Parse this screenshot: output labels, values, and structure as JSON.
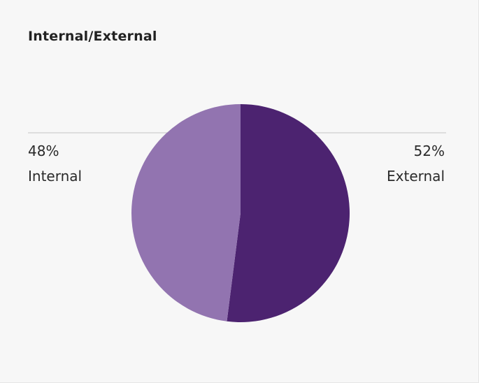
{
  "card": {
    "title": "Internal/External"
  },
  "chart_data": {
    "type": "pie",
    "title": "Internal/External",
    "slices": [
      {
        "name": "Internal",
        "value": 48,
        "label": "48%",
        "color": "#9274b0"
      },
      {
        "name": "External",
        "value": 52,
        "label": "52%",
        "color": "#4c2370"
      }
    ],
    "legend": "none",
    "data_labels": "callout leader lines left and right"
  },
  "colors": {
    "background": "#f7f7f7",
    "leader_line": "#c4c4c4",
    "internal": "#9274b0",
    "external": "#4c2370"
  }
}
